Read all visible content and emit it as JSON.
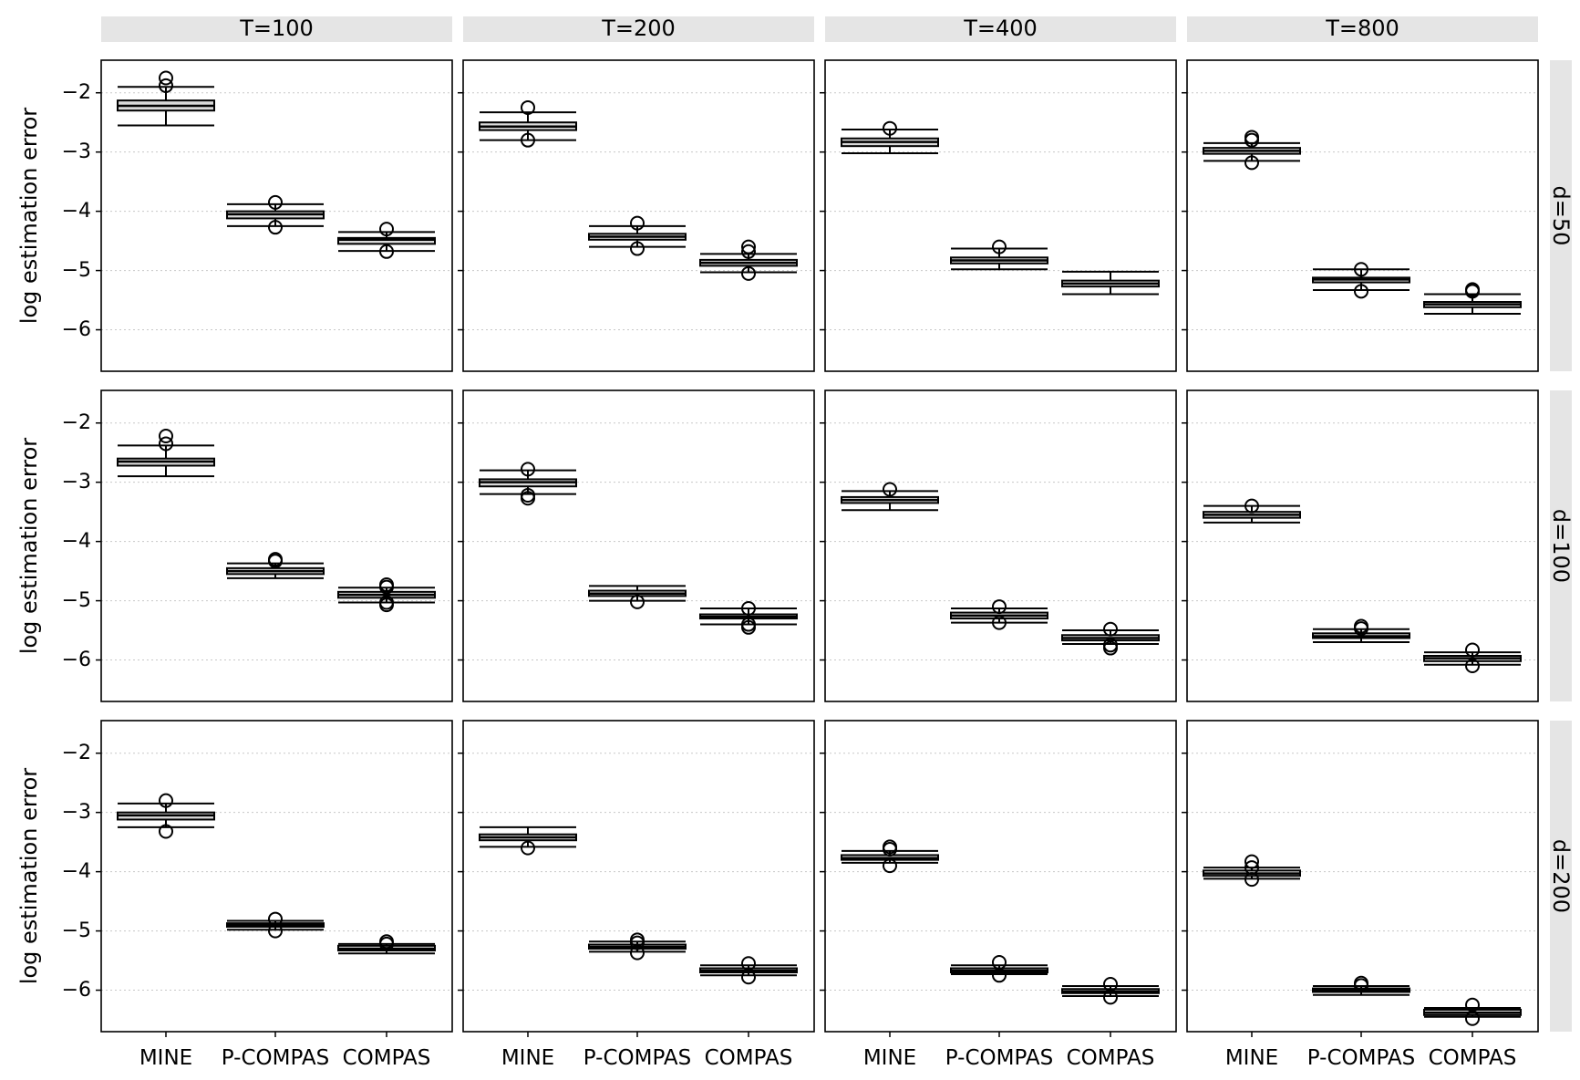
{
  "chart_data": {
    "type": "boxplot",
    "layout": "facet-grid",
    "column_facets": [
      "T=100",
      "T=200",
      "T=400",
      "T=800"
    ],
    "row_facets": [
      "d=50",
      "d=100",
      "d=200"
    ],
    "categories": [
      "MINE",
      "P-COMPAS",
      "COMPAS"
    ],
    "ylabel": "log  estimation error",
    "xlabel": "",
    "ylim": [
      -6.7,
      -1.45
    ],
    "yticks": [
      "−2",
      "−3",
      "−4",
      "−5",
      "−6"
    ],
    "ytick_values": [
      -2,
      -3,
      -4,
      -5,
      -6
    ],
    "grid": "horizontal dotted",
    "panels": [
      {
        "row": "d=50",
        "col": "T=100",
        "boxes": [
          {
            "category": "MINE",
            "whislo": -2.55,
            "q1": -2.3,
            "med": -2.22,
            "q3": -2.13,
            "whishi": -1.9,
            "fliers": [
              -1.75,
              -1.88
            ]
          },
          {
            "category": "P-COMPAS",
            "whislo": -4.25,
            "q1": -4.12,
            "med": -4.05,
            "q3": -4.0,
            "whishi": -3.88,
            "fliers": [
              -3.85,
              -4.27
            ]
          },
          {
            "category": "COMPAS",
            "whislo": -4.67,
            "q1": -4.55,
            "med": -4.48,
            "q3": -4.45,
            "whishi": -4.35,
            "fliers": [
              -4.3,
              -4.68
            ]
          }
        ]
      },
      {
        "row": "d=50",
        "col": "T=200",
        "boxes": [
          {
            "category": "MINE",
            "whislo": -2.8,
            "q1": -2.63,
            "med": -2.57,
            "q3": -2.5,
            "whishi": -2.33,
            "fliers": [
              -2.25,
              -2.8
            ]
          },
          {
            "category": "P-COMPAS",
            "whislo": -4.6,
            "q1": -4.48,
            "med": -4.43,
            "q3": -4.38,
            "whishi": -4.25,
            "fliers": [
              -4.2,
              -4.63
            ]
          },
          {
            "category": "COMPAS",
            "whislo": -5.03,
            "q1": -4.92,
            "med": -4.87,
            "q3": -4.82,
            "whishi": -4.72,
            "fliers": [
              -4.6,
              -4.68,
              -5.05
            ]
          }
        ]
      },
      {
        "row": "d=50",
        "col": "T=400",
        "boxes": [
          {
            "category": "MINE",
            "whislo": -3.02,
            "q1": -2.9,
            "med": -2.83,
            "q3": -2.77,
            "whishi": -2.62,
            "fliers": [
              -2.6
            ]
          },
          {
            "category": "P-COMPAS",
            "whislo": -4.98,
            "q1": -4.88,
            "med": -4.83,
            "q3": -4.78,
            "whishi": -4.63,
            "fliers": [
              -4.6
            ]
          },
          {
            "category": "COMPAS",
            "whislo": -5.4,
            "q1": -5.27,
            "med": -5.22,
            "q3": -5.17,
            "whishi": -5.02,
            "fliers": []
          }
        ]
      },
      {
        "row": "d=50",
        "col": "T=800",
        "boxes": [
          {
            "category": "MINE",
            "whislo": -3.15,
            "q1": -3.03,
            "med": -2.98,
            "q3": -2.93,
            "whishi": -2.85,
            "fliers": [
              -2.75,
              -2.8,
              -3.18
            ]
          },
          {
            "category": "P-COMPAS",
            "whislo": -5.33,
            "q1": -5.2,
            "med": -5.15,
            "q3": -5.12,
            "whishi": -4.98,
            "fliers": [
              -4.98,
              -5.35
            ]
          },
          {
            "category": "COMPAS",
            "whislo": -5.73,
            "q1": -5.62,
            "med": -5.57,
            "q3": -5.53,
            "whishi": -5.4,
            "fliers": [
              -5.32,
              -5.35
            ]
          }
        ]
      },
      {
        "row": "d=100",
        "col": "T=100",
        "boxes": [
          {
            "category": "MINE",
            "whislo": -2.9,
            "q1": -2.72,
            "med": -2.65,
            "q3": -2.6,
            "whishi": -2.38,
            "fliers": [
              -2.22,
              -2.35
            ]
          },
          {
            "category": "P-COMPAS",
            "whislo": -4.62,
            "q1": -4.55,
            "med": -4.5,
            "q3": -4.45,
            "whishi": -4.37,
            "fliers": [
              -4.3,
              -4.33
            ]
          },
          {
            "category": "COMPAS",
            "whislo": -5.03,
            "q1": -4.95,
            "med": -4.9,
            "q3": -4.85,
            "whishi": -4.78,
            "fliers": [
              -4.73,
              -4.77,
              -5.03,
              -5.07
            ]
          }
        ]
      },
      {
        "row": "d=100",
        "col": "T=200",
        "boxes": [
          {
            "category": "MINE",
            "whislo": -3.2,
            "q1": -3.07,
            "med": -3.0,
            "q3": -2.95,
            "whishi": -2.8,
            "fliers": [
              -2.78,
              -3.22,
              -3.27
            ]
          },
          {
            "category": "P-COMPAS",
            "whislo": -5.0,
            "q1": -4.92,
            "med": -4.88,
            "q3": -4.83,
            "whishi": -4.75,
            "fliers": [
              -5.02
            ]
          },
          {
            "category": "COMPAS",
            "whislo": -5.4,
            "q1": -5.3,
            "med": -5.27,
            "q3": -5.23,
            "whishi": -5.13,
            "fliers": [
              -5.13,
              -5.4,
              -5.45
            ]
          }
        ]
      },
      {
        "row": "d=100",
        "col": "T=400",
        "boxes": [
          {
            "category": "MINE",
            "whislo": -3.47,
            "q1": -3.35,
            "med": -3.3,
            "q3": -3.25,
            "whishi": -3.15,
            "fliers": [
              -3.12
            ]
          },
          {
            "category": "P-COMPAS",
            "whislo": -5.37,
            "q1": -5.3,
            "med": -5.25,
            "q3": -5.2,
            "whishi": -5.13,
            "fliers": [
              -5.1,
              -5.37
            ]
          },
          {
            "category": "COMPAS",
            "whislo": -5.73,
            "q1": -5.67,
            "med": -5.63,
            "q3": -5.58,
            "whishi": -5.5,
            "fliers": [
              -5.48,
              -5.75,
              -5.8
            ]
          }
        ]
      },
      {
        "row": "d=100",
        "col": "T=800",
        "boxes": [
          {
            "category": "MINE",
            "whislo": -3.68,
            "q1": -3.6,
            "med": -3.55,
            "q3": -3.5,
            "whishi": -3.4,
            "fliers": [
              -3.4
            ]
          },
          {
            "category": "P-COMPAS",
            "whislo": -5.7,
            "q1": -5.63,
            "med": -5.6,
            "q3": -5.55,
            "whishi": -5.48,
            "fliers": [
              -5.43,
              -5.47
            ]
          },
          {
            "category": "COMPAS",
            "whislo": -6.08,
            "q1": -6.02,
            "med": -5.97,
            "q3": -5.93,
            "whishi": -5.87,
            "fliers": [
              -5.83,
              -6.1
            ]
          }
        ]
      },
      {
        "row": "d=200",
        "col": "T=100",
        "boxes": [
          {
            "category": "MINE",
            "whislo": -3.25,
            "q1": -3.12,
            "med": -3.05,
            "q3": -3.0,
            "whishi": -2.85,
            "fliers": [
              -2.8,
              -3.32
            ]
          },
          {
            "category": "P-COMPAS",
            "whislo": -4.98,
            "q1": -4.93,
            "med": -4.9,
            "q3": -4.87,
            "whishi": -4.83,
            "fliers": [
              -4.8,
              -5.0
            ]
          },
          {
            "category": "COMPAS",
            "whislo": -5.38,
            "q1": -5.33,
            "med": -5.3,
            "q3": -5.25,
            "whishi": -5.22,
            "fliers": [
              -5.18,
              -5.22
            ]
          }
        ]
      },
      {
        "row": "d=200",
        "col": "T=200",
        "boxes": [
          {
            "category": "MINE",
            "whislo": -3.58,
            "q1": -3.47,
            "med": -3.42,
            "q3": -3.37,
            "whishi": -3.25,
            "fliers": [
              -3.6
            ]
          },
          {
            "category": "P-COMPAS",
            "whislo": -5.35,
            "q1": -5.3,
            "med": -5.27,
            "q3": -5.23,
            "whishi": -5.18,
            "fliers": [
              -5.15,
              -5.2,
              -5.37
            ]
          },
          {
            "category": "COMPAS",
            "whislo": -5.75,
            "q1": -5.7,
            "med": -5.67,
            "q3": -5.63,
            "whishi": -5.58,
            "fliers": [
              -5.55,
              -5.78
            ]
          }
        ]
      },
      {
        "row": "d=200",
        "col": "T=400",
        "boxes": [
          {
            "category": "MINE",
            "whislo": -3.85,
            "q1": -3.8,
            "med": -3.77,
            "q3": -3.72,
            "whishi": -3.65,
            "fliers": [
              -3.58,
              -3.62,
              -3.9
            ]
          },
          {
            "category": "P-COMPAS",
            "whislo": -5.73,
            "q1": -5.7,
            "med": -5.67,
            "q3": -5.63,
            "whishi": -5.58,
            "fliers": [
              -5.53,
              -5.75
            ]
          },
          {
            "category": "COMPAS",
            "whislo": -6.1,
            "q1": -6.05,
            "med": -6.02,
            "q3": -5.98,
            "whishi": -5.93,
            "fliers": [
              -5.9,
              -6.12
            ]
          }
        ]
      },
      {
        "row": "d=200",
        "col": "T=800",
        "boxes": [
          {
            "category": "MINE",
            "whislo": -4.12,
            "q1": -4.07,
            "med": -4.03,
            "q3": -3.98,
            "whishi": -3.93,
            "fliers": [
              -3.83,
              -3.93,
              -4.13
            ]
          },
          {
            "category": "P-COMPAS",
            "whislo": -6.08,
            "q1": -6.03,
            "med": -6.0,
            "q3": -5.97,
            "whishi": -5.93,
            "fliers": [
              -5.88,
              -5.92
            ]
          },
          {
            "category": "COMPAS",
            "whislo": -6.45,
            "q1": -6.42,
            "med": -6.38,
            "q3": -6.33,
            "whishi": -6.3,
            "fliers": [
              -6.25,
              -6.48
            ]
          }
        ]
      }
    ]
  }
}
